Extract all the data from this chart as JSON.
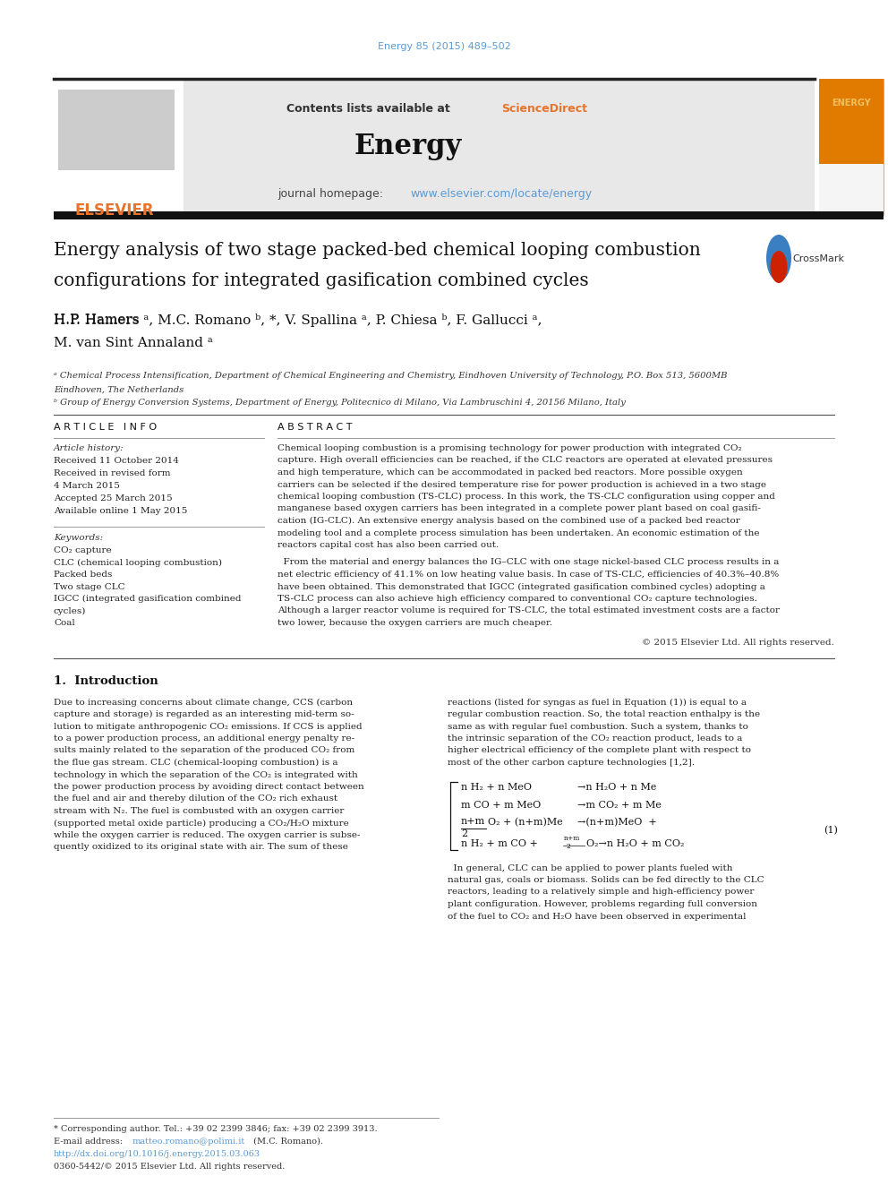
{
  "journal_ref": "Energy 85 (2015) 489–502",
  "journal_ref_color": "#5b9bd5",
  "sciencedirect_color": "#e8732a",
  "journal_url": "www.elsevier.com/locate/energy",
  "journal_url_color": "#5b9bd5",
  "elsevier_color": "#e8732a",
  "bg_color": "#ffffff",
  "header_bg": "#e8e8e8",
  "dark_bar_color": "#111111",
  "copyright_text": "© 2015 Elsevier Ltd. All rights reserved.",
  "footnote_star": "* Corresponding author. Tel.: +39 02 2399 3846; fax: +39 02 2399 3913.",
  "footnote_doi": "http://dx.doi.org/10.1016/j.energy.2015.03.063",
  "footnote_doi_color": "#5b9bd5",
  "footnote_issn": "0360-5442/© 2015 Elsevier Ltd. All rights reserved."
}
